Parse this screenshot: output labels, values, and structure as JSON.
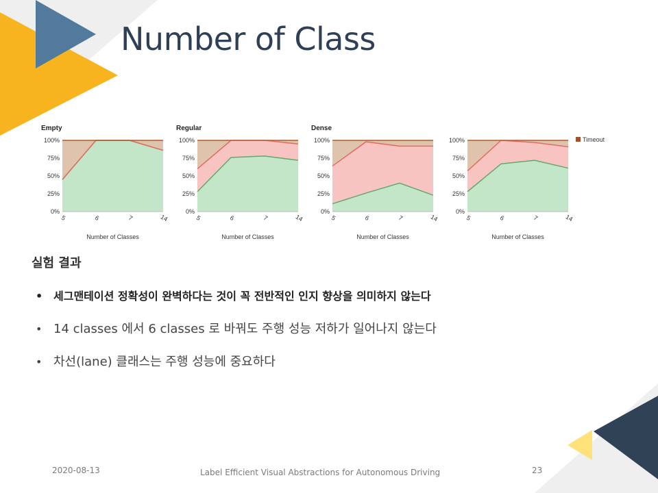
{
  "title": "Number of Class",
  "legend": {
    "label": "Timeout",
    "color": "#a0522d"
  },
  "colors": {
    "green_fill": "#c2e6c7",
    "green_line": "#63a86a",
    "red_fill": "#f8c4c1",
    "red_line": "#e06d5e",
    "tan_fill": "#e0c3ad",
    "top_line": "#b35a2a",
    "grid": "#dddddd"
  },
  "chart_data": [
    {
      "type": "area",
      "title": "Empty",
      "x": [
        "5",
        "6",
        "7",
        "14"
      ],
      "ylim": [
        0,
        100
      ],
      "yticks": [
        "0%",
        "25%",
        "50%",
        "75%",
        "100%"
      ],
      "xlabel": "Number of Classes",
      "series": [
        {
          "values": [
            45,
            100,
            100,
            86
          ]
        },
        {
          "values": [
            45,
            100,
            100,
            86
          ]
        }
      ]
    },
    {
      "type": "area",
      "title": "Regular",
      "x": [
        "5",
        "6",
        "7",
        "14"
      ],
      "ylim": [
        0,
        100
      ],
      "yticks": [
        "0%",
        "25%",
        "50%",
        "75%",
        "100%"
      ],
      "xlabel": "Number of Classes",
      "series": [
        {
          "values": [
            28,
            76,
            78,
            72
          ]
        },
        {
          "values": [
            60,
            100,
            100,
            95
          ]
        }
      ]
    },
    {
      "type": "area",
      "title": "Dense",
      "x": [
        "5",
        "6",
        "7",
        "14"
      ],
      "ylim": [
        0,
        100
      ],
      "yticks": [
        "0%",
        "25%",
        "50%",
        "75%",
        "100%"
      ],
      "xlabel": "Number of Classes",
      "series": [
        {
          "values": [
            11,
            26,
            40,
            23
          ]
        },
        {
          "values": [
            64,
            98,
            92,
            92
          ]
        }
      ]
    },
    {
      "type": "area",
      "title": "",
      "x": [
        "5",
        "6",
        "7",
        "14"
      ],
      "ylim": [
        0,
        100
      ],
      "yticks": [
        "0%",
        "25%",
        "50%",
        "75%",
        "100%"
      ],
      "xlabel": "Number of Classes",
      "series": [
        {
          "values": [
            28,
            67,
            72,
            61
          ]
        },
        {
          "values": [
            57,
            100,
            97,
            91
          ]
        }
      ]
    }
  ],
  "section_heading": "실험 결과",
  "bullets": [
    "세그맨테이션 정확성이 완벽하다는 것이 꼭 전반적인 인지 향상을 의미하지 않는다",
    "14 classes 에서 6 classes 로 바꿔도 주행 성능 저하가 일어나지 않는다",
    "차선(lane) 클래스는 주행 성능에 중요하다"
  ],
  "bullet_marker": "•",
  "footer": {
    "date": "2020-08-13",
    "caption": "Label Efficient Visual Abstractions for Autonomous  Driving",
    "page": "23"
  }
}
